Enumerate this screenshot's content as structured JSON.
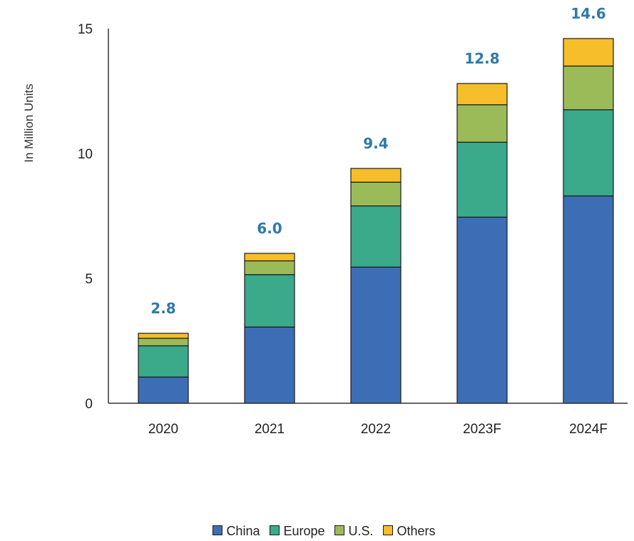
{
  "chart_data": {
    "type": "bar",
    "stacked": true,
    "ylabel": "In Million Units",
    "ylim": [
      0,
      15
    ],
    "yticks": [
      0,
      5,
      10,
      15
    ],
    "categories": [
      "2020",
      "2021",
      "2022",
      "2023F",
      "2024F"
    ],
    "series": [
      {
        "name": "China",
        "color": "#3D6EB5",
        "values": [
          1.05,
          3.05,
          5.45,
          7.45,
          8.3
        ]
      },
      {
        "name": "Europe",
        "color": "#3AAA8A",
        "values": [
          1.25,
          2.1,
          2.45,
          3.0,
          3.45
        ]
      },
      {
        "name": "U.S.",
        "color": "#9BBB59",
        "values": [
          0.3,
          0.55,
          0.95,
          1.5,
          1.75
        ]
      },
      {
        "name": "Others",
        "color": "#F5BE2A",
        "values": [
          0.2,
          0.3,
          0.55,
          0.85,
          1.1
        ]
      }
    ],
    "totals": [
      "2.8",
      "6.0",
      "9.4",
      "12.8",
      "14.6"
    ],
    "grid": false,
    "legend_position": "bottom"
  }
}
